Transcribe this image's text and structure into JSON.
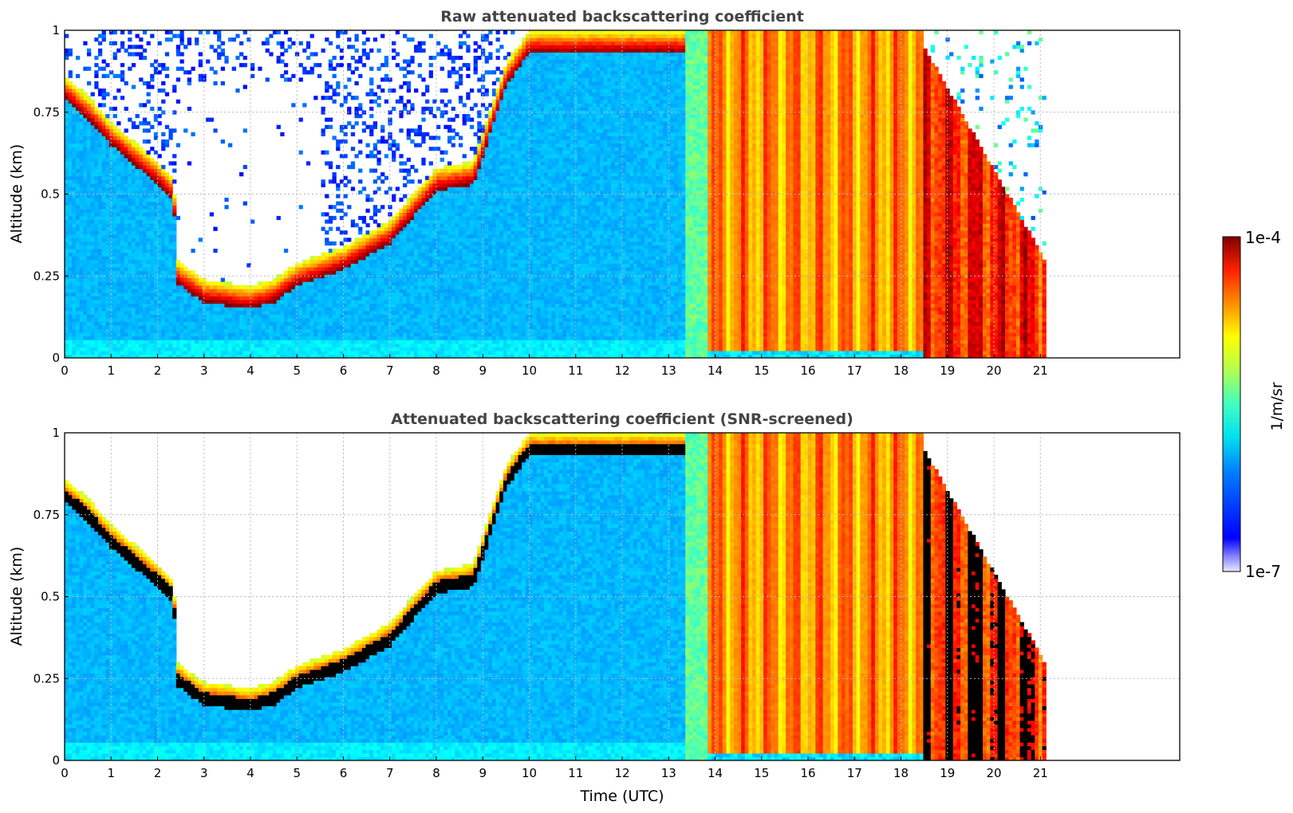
{
  "chart_data": [
    {
      "type": "heatmap",
      "title": "Raw attenuated backscattering coefficient",
      "xlabel": "",
      "ylabel": "Altitude (km)",
      "xlim": [
        0,
        24
      ],
      "ylim": [
        0,
        1
      ],
      "xticks": [
        "0",
        "1",
        "2",
        "3",
        "4",
        "5",
        "6",
        "7",
        "8",
        "9",
        "10",
        "11",
        "12",
        "13",
        "14",
        "15",
        "16",
        "17",
        "18",
        "19",
        "20",
        "21"
      ],
      "yticks": [
        "0",
        "0.25",
        "0.5",
        "0.75",
        "1"
      ],
      "grid": true,
      "data_end_hour": 21.15,
      "layer_top_km": [
        [
          0,
          0.86
        ],
        [
          0.5,
          0.8
        ],
        [
          1,
          0.72
        ],
        [
          1.5,
          0.66
        ],
        [
          2,
          0.6
        ],
        [
          2.35,
          0.55
        ],
        [
          2.4,
          0.3
        ],
        [
          3,
          0.24
        ],
        [
          4,
          0.22
        ],
        [
          4.5,
          0.24
        ],
        [
          5,
          0.29
        ],
        [
          6,
          0.34
        ],
        [
          7,
          0.42
        ],
        [
          7.5,
          0.5
        ],
        [
          8,
          0.58
        ],
        [
          8.8,
          0.6
        ],
        [
          9.5,
          0.9
        ],
        [
          10,
          1.0
        ]
      ],
      "screened": false
    },
    {
      "type": "heatmap",
      "title": "Attenuated backscattering coefficient (SNR-screened)",
      "xlabel": "Time (UTC)",
      "ylabel": "Altitude (km)",
      "xlim": [
        0,
        24
      ],
      "ylim": [
        0,
        1
      ],
      "xticks": [
        "0",
        "1",
        "2",
        "3",
        "4",
        "5",
        "6",
        "7",
        "8",
        "9",
        "10",
        "11",
        "12",
        "13",
        "14",
        "15",
        "16",
        "17",
        "18",
        "19",
        "20",
        "21"
      ],
      "yticks": [
        "0",
        "0.25",
        "0.5",
        "0.75",
        "1"
      ],
      "grid": true,
      "data_end_hour": 21.15,
      "layer_top_km": [
        [
          0,
          0.86
        ],
        [
          0.5,
          0.8
        ],
        [
          1,
          0.72
        ],
        [
          1.5,
          0.66
        ],
        [
          2,
          0.6
        ],
        [
          2.35,
          0.55
        ],
        [
          2.4,
          0.3
        ],
        [
          3,
          0.24
        ],
        [
          4,
          0.22
        ],
        [
          4.5,
          0.24
        ],
        [
          5,
          0.29
        ],
        [
          6,
          0.34
        ],
        [
          7,
          0.42
        ],
        [
          7.5,
          0.5
        ],
        [
          8,
          0.58
        ],
        [
          8.8,
          0.6
        ],
        [
          9.5,
          0.9
        ],
        [
          10,
          1.0
        ]
      ],
      "screened": true
    }
  ],
  "colorbar": {
    "label": "1/m/sr",
    "min_label": "1e-7",
    "max_label": "1e-4",
    "colormap": "jet",
    "scale": "log"
  }
}
